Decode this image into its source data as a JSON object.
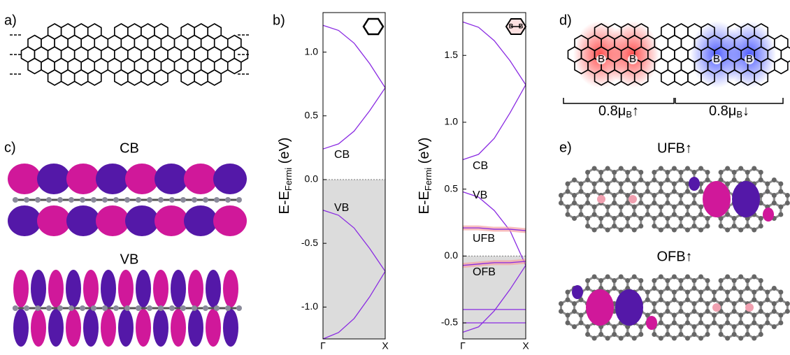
{
  "panels": {
    "a": "a)",
    "b": "b)",
    "c": "c)",
    "d": "d)",
    "e": "e)"
  },
  "orbitals_c": [
    "CB",
    "VB"
  ],
  "dopant_label": "B",
  "moments": [
    {
      "base": "0.8μ",
      "sub": "B",
      "arrow": "↑"
    },
    {
      "base": "0.8μ",
      "sub": "B",
      "arrow": "↓"
    }
  ],
  "orbitals_e": [
    "UFB↑",
    "OFB↑"
  ],
  "chart_data": [
    {
      "type": "line",
      "ylabel": {
        "main": "E-E",
        "sub": "Fermi",
        "unit": " (eV)"
      },
      "x": [
        0,
        0.25,
        0.5,
        0.75,
        1
      ],
      "xlim": [
        0,
        1
      ],
      "xticks": [
        {
          "value": 0,
          "label": "Γ"
        },
        {
          "value": 1,
          "label": "X"
        }
      ],
      "ylim": [
        -1.25,
        1.31
      ],
      "yticks": [
        {
          "value": -1,
          "label": "-1.0"
        },
        {
          "value": -0.5,
          "label": "-0.5"
        },
        {
          "value": 0,
          "label": "0.0"
        },
        {
          "value": 0.5,
          "label": "0.5"
        },
        {
          "value": 1,
          "label": "1.0"
        }
      ],
      "shade_below_zero": true,
      "zero_line": true,
      "annotations": [
        "CB",
        "VB"
      ],
      "series": [
        {
          "color": "#8a2be2",
          "values": [
            1.21,
            1.17,
            1.07,
            0.91,
            0.72
          ]
        },
        {
          "color": "#8a2be2",
          "values": [
            0.24,
            0.28,
            0.38,
            0.54,
            0.72
          ]
        },
        {
          "color": "#8a2be2",
          "values": [
            -0.24,
            -0.28,
            -0.38,
            -0.54,
            -0.72
          ]
        },
        {
          "color": "#8a2be2",
          "values": [
            -1.25,
            -1.2,
            -1.09,
            -0.92,
            -0.72
          ]
        }
      ]
    },
    {
      "type": "line",
      "ylabel": {
        "main": "E-E",
        "sub": "Fermi",
        "unit": " (eV)"
      },
      "x": [
        0,
        0.25,
        0.5,
        0.75,
        1
      ],
      "xlim": [
        0,
        1
      ],
      "xticks": [
        {
          "value": 0,
          "label": "Γ"
        },
        {
          "value": 1,
          "label": "X"
        }
      ],
      "ylim": [
        -0.62,
        1.82
      ],
      "yticks": [
        {
          "value": -0.5,
          "label": "-0.5"
        },
        {
          "value": 0,
          "label": "0.0"
        },
        {
          "value": 0.5,
          "label": "0.5"
        },
        {
          "value": 1,
          "label": "1.0"
        },
        {
          "value": 1.5,
          "label": "1.5"
        }
      ],
      "shade_below_zero": true,
      "zero_line": true,
      "annotations": [
        "CB",
        "VB",
        "UFB",
        "OFB"
      ],
      "series": [
        {
          "color": "#8a2be2",
          "values": [
            1.75,
            1.71,
            1.61,
            1.46,
            1.28
          ]
        },
        {
          "color": "#8a2be2",
          "values": [
            0.72,
            0.76,
            0.88,
            1.07,
            1.28
          ]
        },
        {
          "color": "#8a2be2",
          "values": [
            0.48,
            0.44,
            0.34,
            0.19,
            -0.07
          ]
        },
        {
          "color": "#8a2be2",
          "highlight": "#f5a3a3",
          "values": [
            0.21,
            0.21,
            0.2,
            0.2,
            0.19
          ]
        },
        {
          "color": "#8a2be2",
          "highlight": "#f5a3a3",
          "values": [
            -0.07,
            -0.06,
            -0.05,
            -0.05,
            -0.04
          ]
        },
        {
          "color": "#8a2be2",
          "values": [
            -0.4,
            -0.4,
            -0.4,
            -0.4,
            -0.4
          ]
        },
        {
          "color": "#8a2be2",
          "values": [
            -0.5,
            -0.5,
            -0.5,
            -0.5,
            -0.5
          ]
        },
        {
          "color": "#8a2be2",
          "values": [
            -0.57,
            -0.53,
            -0.41,
            -0.25,
            -0.07
          ]
        }
      ]
    }
  ]
}
